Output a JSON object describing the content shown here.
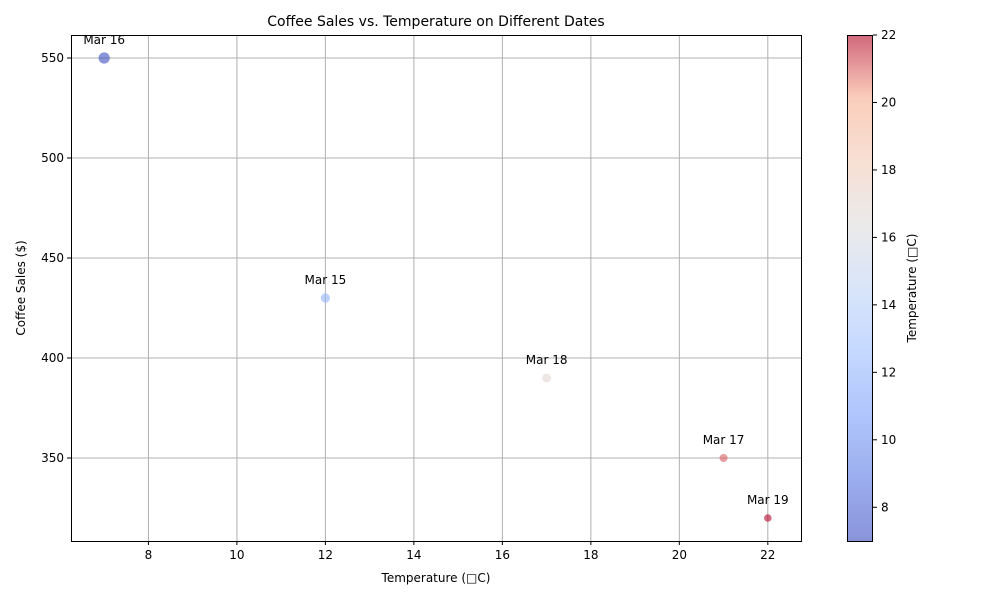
{
  "chart_data": {
    "type": "scatter",
    "title": "Coffee Sales vs. Temperature on Different Dates",
    "xlabel": "Temperature (□C)",
    "ylabel": "Coffee Sales ($)",
    "xlim": [
      6.25,
      22.75
    ],
    "ylim": [
      308.5,
      561.5
    ],
    "xticks": [
      8,
      10,
      12,
      14,
      16,
      18,
      20,
      22
    ],
    "yticks": [
      350,
      400,
      450,
      500,
      550
    ],
    "grid": true,
    "points": [
      {
        "label": "Mar 15",
        "x": 12,
        "y": 430
      },
      {
        "label": "Mar 16",
        "x": 7,
        "y": 550
      },
      {
        "label": "Mar 17",
        "x": 21,
        "y": 350
      },
      {
        "label": "Mar 18",
        "x": 17,
        "y": 390
      },
      {
        "label": "Mar 19",
        "x": 22,
        "y": 320
      }
    ],
    "colorbar": {
      "label": "Temperature (□C)",
      "range": [
        7,
        22
      ],
      "ticks": [
        8,
        10,
        12,
        14,
        16,
        18,
        20,
        22
      ],
      "colormap": "coolwarm",
      "alpha": 0.6
    }
  }
}
